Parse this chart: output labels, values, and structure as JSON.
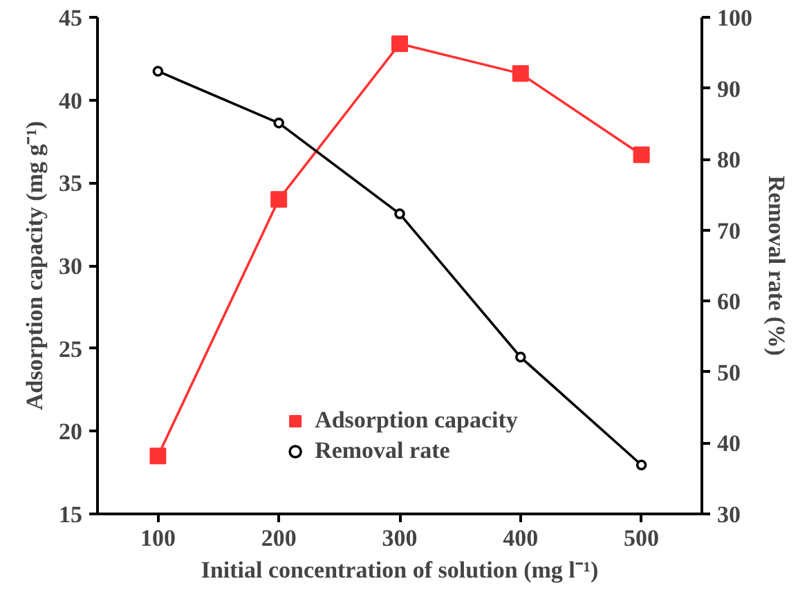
{
  "chart_data": {
    "type": "line",
    "xlabel": "Initial concentration of solution (mg l⁻¹)",
    "ylabel": "Adsorption capacity (mg g⁻¹)",
    "y2label": "Removal rate (%)",
    "x": [
      100,
      200,
      300,
      400,
      500
    ],
    "series": [
      {
        "name": "Adsorption capacity",
        "color": "#ff3333",
        "marker": "square",
        "values": [
          18.5,
          34.0,
          43.4,
          41.6,
          36.7
        ]
      },
      {
        "name": "Removal rate",
        "color": "#000000",
        "marker": "circle",
        "axis": "y2",
        "values": [
          92.4,
          85.1,
          72.3,
          52.1,
          36.9
        ]
      }
    ],
    "xlim": [
      50,
      550
    ],
    "xticks": [
      100,
      200,
      300,
      400,
      500
    ],
    "ylim": [
      15,
      45
    ],
    "yticks": [
      15,
      20,
      25,
      30,
      35,
      40,
      45
    ],
    "y2lim": [
      30,
      100
    ],
    "y2ticks": [
      30,
      40,
      50,
      60,
      70,
      80,
      90,
      100
    ],
    "grid": false,
    "legend": "bottom",
    "line_style": "solid"
  }
}
